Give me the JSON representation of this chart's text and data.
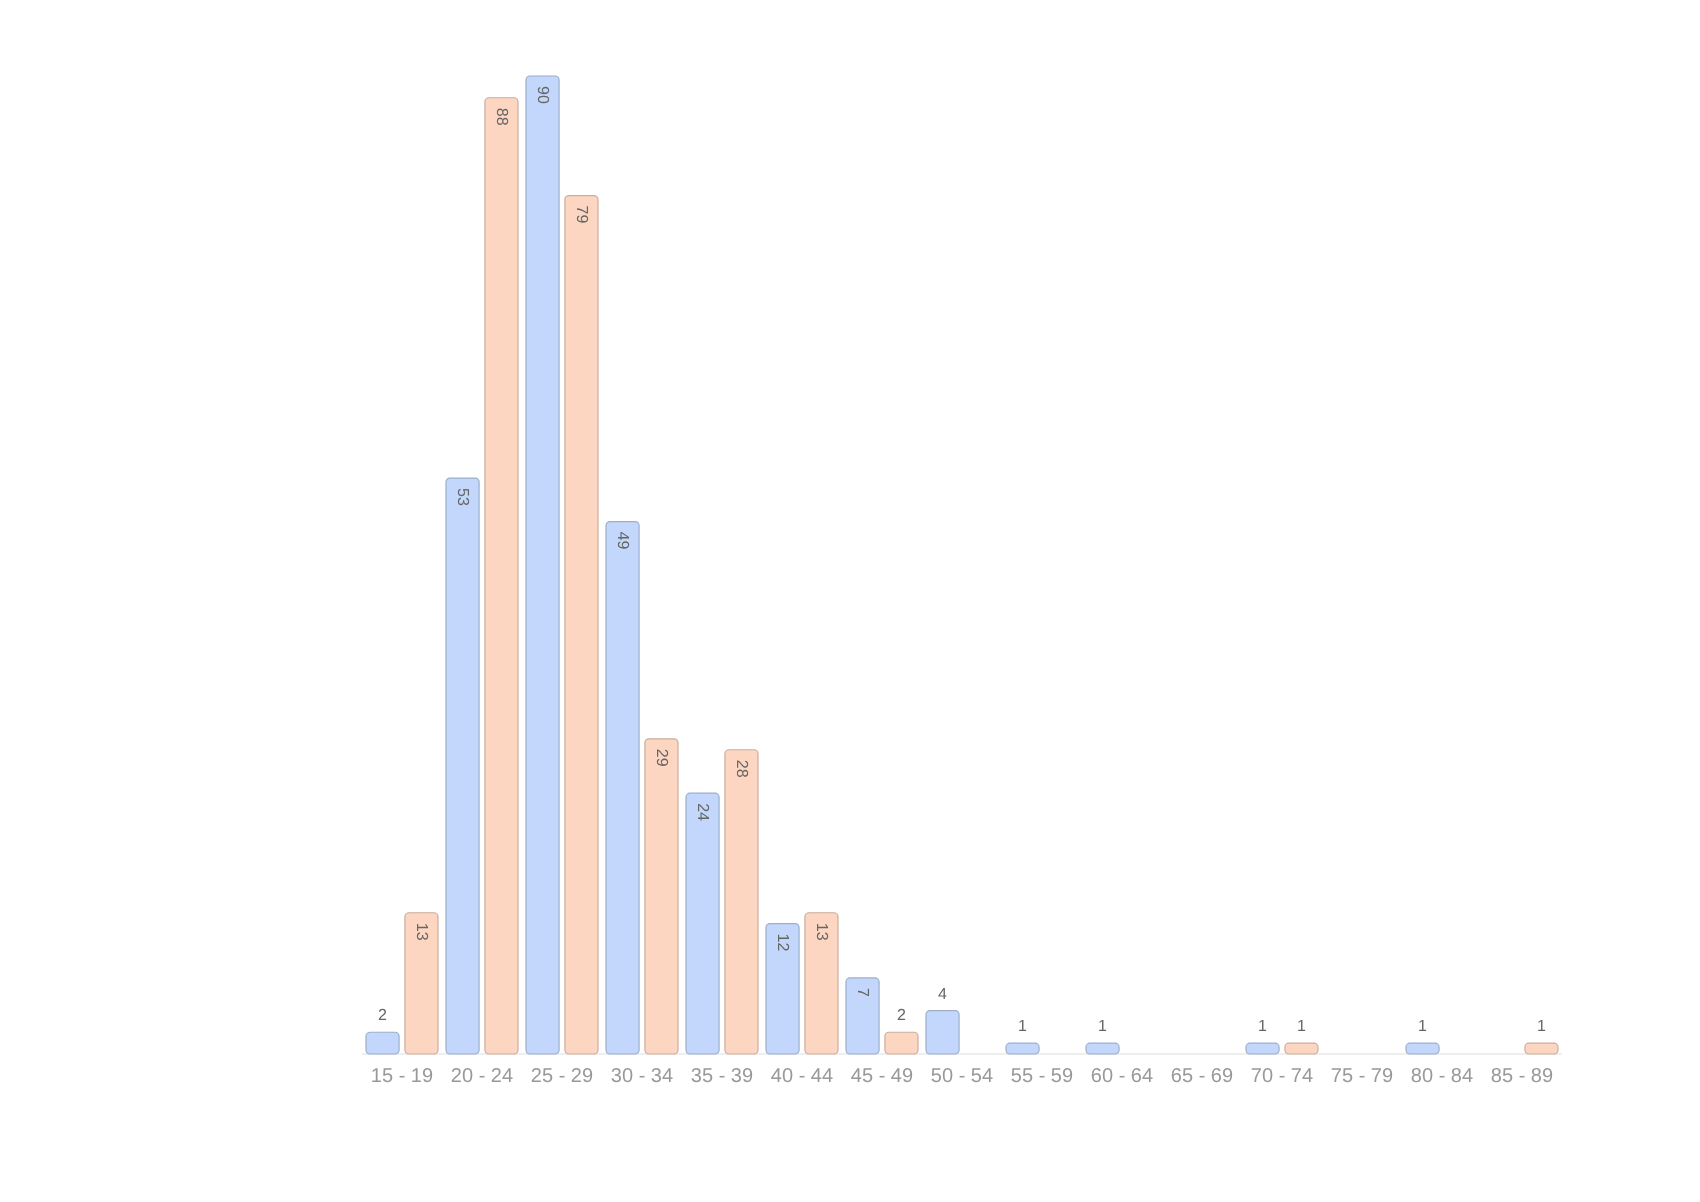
{
  "chart_data": {
    "type": "bar",
    "categories": [
      "15 - 19",
      "20 - 24",
      "25 - 29",
      "30 - 34",
      "35 - 39",
      "40 - 44",
      "45 - 49",
      "50 - 54",
      "55 - 59",
      "60 - 64",
      "65 - 69",
      "70 - 74",
      "75 - 79",
      "80 - 84",
      "85 - 89"
    ],
    "series": [
      {
        "color": "#c2d7fb",
        "values": [
          2,
          53,
          90,
          49,
          24,
          12,
          7,
          4,
          1,
          1,
          null,
          1,
          null,
          1,
          null
        ]
      },
      {
        "color": "#fdd6c2",
        "values": [
          13,
          88,
          79,
          29,
          28,
          13,
          2,
          null,
          null,
          null,
          null,
          1,
          null,
          null,
          1
        ]
      }
    ],
    "data_labels": true
  }
}
